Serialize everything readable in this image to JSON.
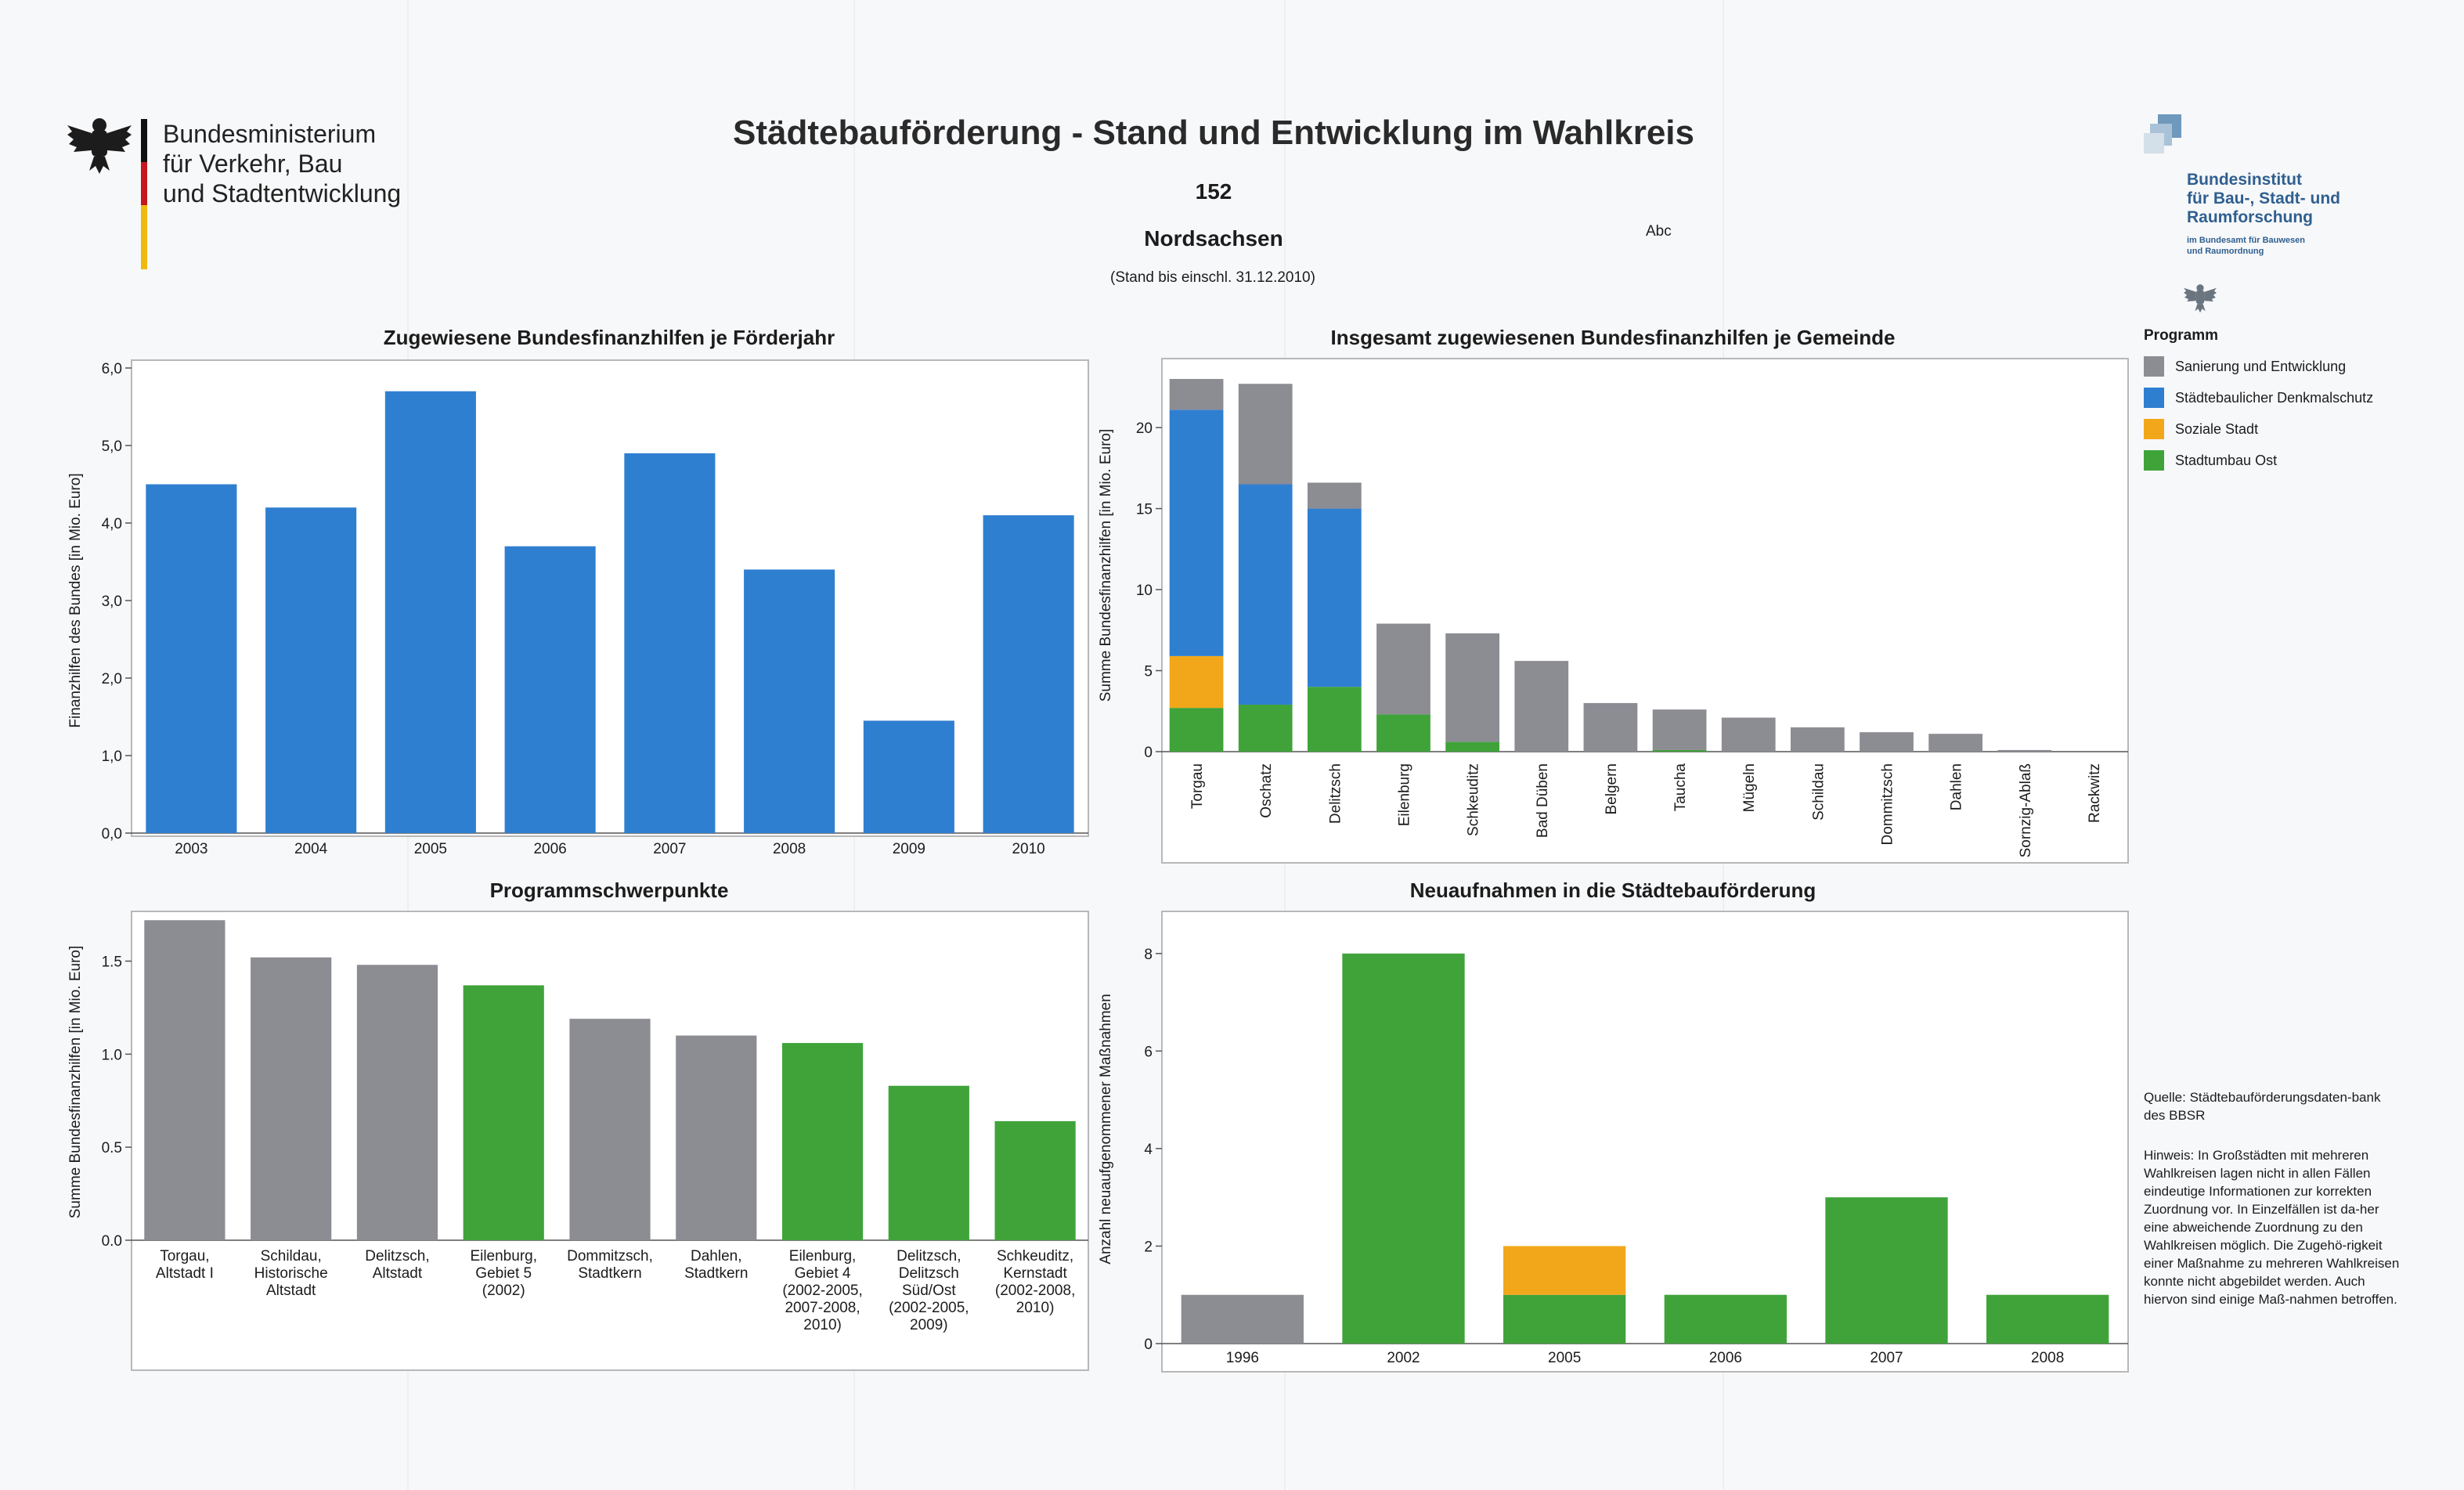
{
  "header": {
    "ministry_lines": [
      "Bundesministerium",
      "für Verkehr, Bau",
      "und Stadtentwicklung"
    ],
    "title": "Städtebauförderung - Stand und Entwicklung im Wahlkreis",
    "district_number": "152",
    "district_name": "Nordsachsen",
    "stand": "(Stand bis einschl. 31.12.2010)",
    "abc": "Abc",
    "bbsr_lines": [
      "Bundesinstitut",
      "für Bau-, Stadt- und",
      "Raumforschung"
    ],
    "bbsr_sub_lines": [
      "im Bundesamt für Bauwesen",
      "und Raumordnung"
    ]
  },
  "legend": {
    "title": "Programm",
    "items": [
      {
        "label": "Sanierung und Entwicklung",
        "color": "#8c8c93"
      },
      {
        "label": "Städtebaulicher Denkmalschutz",
        "color": "#2f7fd1"
      },
      {
        "label": "Soziale Stadt",
        "color": "#f2a71b"
      },
      {
        "label": "Stadtumbau Ost",
        "color": "#3fa33a"
      }
    ]
  },
  "notes": {
    "source": "Quelle: Städtebauförderungsdaten-bank des BBSR",
    "hint": "Hinweis: In Großstädten mit mehreren Wahlkreisen lagen nicht in allen Fällen eindeutige Informationen zur korrekten Zuordnung vor. In Einzelfällen ist da-her eine abweichende Zuordnung zu den Wahlkreisen möglich. Die Zugehö-rigkeit einer Maßnahme zu mehreren Wahlkreisen konnte nicht abgebildet werden. Auch hiervon sind einige Maß-nahmen betroffen."
  },
  "chart_data": [
    {
      "type": "bar",
      "title": "Zugewiesene Bundesfinanzhilfen je Förderjahr",
      "ylabel": "Finanzhilfen des Bundes [in Mio. Euro]",
      "xlabel": "",
      "ylim": [
        0,
        6
      ],
      "yticks": [
        "0,0",
        "1,0",
        "2,0",
        "3,0",
        "4,0",
        "5,0",
        "6,0"
      ],
      "categories": [
        "2003",
        "2004",
        "2005",
        "2006",
        "2007",
        "2008",
        "2009",
        "2010"
      ],
      "values": [
        4.5,
        4.2,
        5.7,
        3.7,
        4.9,
        3.4,
        1.45,
        4.1
      ],
      "colors": [
        "#2f7fd1"
      ]
    },
    {
      "type": "bar",
      "stacked": true,
      "title": "Insgesamt zugewiesenen Bundesfinanzhilfen je Gemeinde",
      "ylabel": "Summe Bundesfinanzhilfen [in Mio. Euro]",
      "xlabel": "",
      "ylim": [
        0,
        23
      ],
      "yticks": [
        "0",
        "5",
        "10",
        "15",
        "20"
      ],
      "categories": [
        "Torgau",
        "Oschatz",
        "Delitzsch",
        "Eilenburg",
        "Schkeuditz",
        "Bad Düben",
        "Belgern",
        "Taucha",
        "Mügeln",
        "Schildau",
        "Dommitzsch",
        "Dahlen",
        "Sornzig-Ablaß",
        "Rackwitz"
      ],
      "series": [
        {
          "name": "Stadtumbau Ost",
          "values": [
            2.7,
            2.9,
            4.0,
            2.3,
            0.6,
            0,
            0,
            0.1,
            0,
            0,
            0,
            0,
            0,
            0
          ],
          "color": "#3fa33a"
        },
        {
          "name": "Soziale Stadt",
          "values": [
            3.2,
            0,
            0,
            0,
            0,
            0,
            0,
            0,
            0,
            0,
            0,
            0,
            0,
            0
          ],
          "color": "#f2a71b"
        },
        {
          "name": "Städtebaulicher Denkmalschutz",
          "values": [
            15.2,
            13.6,
            11.0,
            0,
            0,
            0,
            0,
            0,
            0,
            0,
            0,
            0,
            0,
            0
          ],
          "color": "#2f7fd1"
        },
        {
          "name": "Sanierung und Entwicklung",
          "values": [
            1.9,
            6.2,
            1.6,
            5.6,
            6.7,
            5.6,
            3.0,
            2.5,
            2.1,
            1.5,
            1.2,
            1.1,
            0.1,
            0
          ],
          "color": "#8c8c93"
        }
      ]
    },
    {
      "type": "bar",
      "title": "Programmschwerpunkte",
      "ylabel": "Summe Bundesfinanzhilfen [in Mio. Euro]",
      "xlabel": "",
      "ylim": [
        0,
        1.7
      ],
      "yticks": [
        "0.0",
        "0.5",
        "1.0",
        "1.5"
      ],
      "categories": [
        "Torgau,\nAltstadt I",
        "Schildau,\nHistorische\nAltstadt",
        "Delitzsch,\nAltstadt",
        "Eilenburg,\nGebiet 5\n(2002)",
        "Dommitzsch,\nStadtkern",
        "Dahlen,\nStadtkern",
        "Eilenburg,\nGebiet 4\n(2002-2005,\n2007-2008,\n2010)",
        "Delitzsch,\nDelitzsch\nSüd/Ost\n(2002-2005,\n2009)",
        "Schkeuditz,\nKernstadt\n(2002-2008,\n2010)"
      ],
      "values": [
        1.72,
        1.52,
        1.48,
        1.37,
        1.19,
        1.1,
        1.06,
        0.83,
        0.64
      ],
      "bar_colors": [
        "#8c8c93",
        "#8c8c93",
        "#8c8c93",
        "#3fa33a",
        "#8c8c93",
        "#8c8c93",
        "#3fa33a",
        "#3fa33a",
        "#3fa33a"
      ]
    },
    {
      "type": "bar",
      "stacked": true,
      "title": "Neuaufnahmen in die Städtebauförderung",
      "ylabel": "Anzahl neuaufgenommener Maßnahmen",
      "xlabel": "",
      "ylim": [
        0,
        8.8
      ],
      "yticks": [
        "0",
        "2",
        "4",
        "6",
        "8"
      ],
      "categories": [
        "1996",
        "2002",
        "2005",
        "2006",
        "2007",
        "2008"
      ],
      "series": [
        {
          "name": "Sanierung und Entwicklung",
          "values": [
            1,
            0,
            0,
            0,
            0,
            0
          ],
          "color": "#8c8c93"
        },
        {
          "name": "Stadtumbau Ost",
          "values": [
            0,
            8,
            1,
            1,
            3,
            1
          ],
          "color": "#3fa33a"
        },
        {
          "name": "Soziale Stadt",
          "values": [
            0,
            0,
            1,
            0,
            0,
            0
          ],
          "color": "#f2a71b"
        }
      ]
    }
  ]
}
